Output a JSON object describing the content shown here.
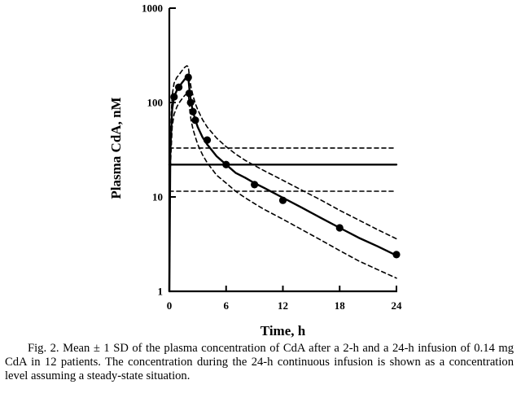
{
  "chart_data": {
    "type": "line",
    "xlabel": "Time, h",
    "ylabel": "Plasma CdA, nM",
    "xlim": [
      0,
      24
    ],
    "ylim": [
      1,
      1000
    ],
    "yscale": "log",
    "xticks": [
      0,
      6,
      12,
      18,
      24
    ],
    "yticks": [
      1,
      10,
      100,
      1000
    ],
    "grid": false,
    "legend": "none",
    "series": [
      {
        "style": "solid",
        "role": "mean fitted curve (2-h infusion)",
        "x": [
          0,
          0.1,
          0.3,
          0.5,
          0.8,
          1.0,
          1.3,
          1.6,
          1.85,
          2.0,
          2.15,
          2.3,
          2.5,
          2.75,
          3.0,
          3.5,
          4.0,
          5.0,
          6.0,
          7.0,
          8.0,
          9.0,
          10.0,
          12.0,
          14.0,
          16.0,
          18.0,
          20.0,
          22.0,
          24.0
        ],
        "y": [
          1.0,
          30,
          85,
          115,
          135,
          145,
          160,
          175,
          185,
          185,
          130,
          100,
          80,
          65,
          55,
          43,
          36,
          27,
          22,
          18,
          16,
          14,
          12.5,
          9.8,
          7.7,
          6.0,
          4.7,
          3.7,
          3.0,
          2.4
        ]
      },
      {
        "style": "dashed",
        "role": "mean + 1 SD",
        "x": [
          0,
          0.1,
          0.3,
          0.5,
          0.8,
          1.0,
          1.3,
          1.6,
          1.85,
          2.0,
          2.15,
          2.3,
          2.5,
          2.75,
          3.0,
          3.5,
          4.0,
          5.0,
          6.0,
          7.0,
          8.0,
          9.0,
          10.0,
          12.0,
          14.0,
          16.0,
          18.0,
          20.0,
          22.0,
          24.0
        ],
        "y": [
          1.0,
          45,
          120,
          160,
          185,
          195,
          215,
          235,
          245,
          240,
          180,
          145,
          118,
          97,
          84,
          66,
          55,
          42,
          34,
          28.5,
          24.5,
          21.5,
          19,
          15,
          11.8,
          9.3,
          7.2,
          5.7,
          4.5,
          3.6
        ]
      },
      {
        "style": "dashed",
        "role": "mean - 1 SD",
        "x": [
          0,
          0.1,
          0.3,
          0.5,
          0.8,
          1.0,
          1.3,
          1.6,
          1.85,
          2.0,
          2.15,
          2.3,
          2.5,
          2.75,
          3.0,
          3.5,
          4.0,
          5.0,
          6.0,
          7.0,
          8.0,
          9.0,
          10.0,
          12.0,
          14.0,
          16.0,
          18.0,
          20.0,
          22.0,
          24.0
        ],
        "y": [
          1.0,
          20,
          55,
          75,
          90,
          98,
          108,
          118,
          125,
          125,
          85,
          65,
          52,
          43,
          36,
          28,
          23,
          17,
          14,
          11.5,
          9.8,
          8.5,
          7.4,
          5.8,
          4.5,
          3.5,
          2.7,
          2.1,
          1.7,
          1.38
        ]
      },
      {
        "style": "markers",
        "role": "observed mean concentrations",
        "x": [
          0.5,
          1.0,
          2.0,
          2.1,
          2.25,
          2.5,
          2.75,
          4.0,
          6.0,
          9.0,
          12.0,
          18.0,
          24.0
        ],
        "y": [
          115,
          145,
          185,
          125,
          100,
          80,
          65,
          40,
          22,
          13.5,
          9.2,
          4.7,
          2.45
        ]
      },
      {
        "style": "solid",
        "role": "steady-state level (24-h continuous infusion)",
        "x": [
          0,
          24
        ],
        "y": [
          22,
          22
        ]
      },
      {
        "style": "dashed",
        "role": "steady-state + 1 SD",
        "x": [
          0,
          24
        ],
        "y": [
          33,
          33
        ]
      },
      {
        "style": "dashed",
        "role": "steady-state - 1 SD",
        "x": [
          0,
          24
        ],
        "y": [
          11.5,
          11.5
        ]
      }
    ]
  },
  "caption": "Fig. 2. Mean ± 1 SD of the plasma concentration of CdA after a 2-h and a 24-h infusion of 0.14 mg CdA in 12 patients. The concentration during the 24-h continuous infusion is shown as a concentration level assuming a steady-state situation."
}
